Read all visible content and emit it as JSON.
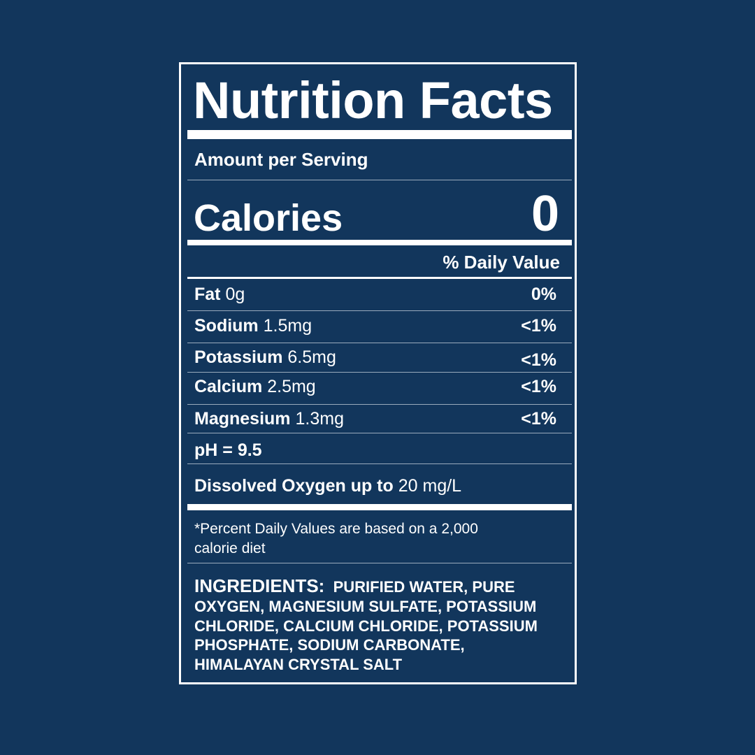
{
  "title": "Nutrition Facts",
  "amount_per_serving": "Amount per Serving",
  "calories": {
    "label": "Calories",
    "value": "0"
  },
  "daily_value_header": "% Daily Value",
  "nutrients": [
    {
      "name": "Fat",
      "amount": "0g",
      "dv": "0%"
    },
    {
      "name": "Sodium",
      "amount": "1.5mg",
      "dv": "<1%"
    },
    {
      "name": "Potassium",
      "amount": "6.5mg",
      "dv": "<1%"
    },
    {
      "name": "Calcium",
      "amount": "2.5mg",
      "dv": "<1%"
    },
    {
      "name": "Magnesium",
      "amount": "1.3mg",
      "dv": "<1%"
    }
  ],
  "ph": "pH = 9.5",
  "dissolved_oxygen": {
    "label": "Dissolved Oxygen up to",
    "value": "20 mg/L"
  },
  "footnote": {
    "line1": "*Percent Daily Values are based on a 2,000",
    "line2": "calorie diet"
  },
  "ingredients": {
    "label": "INGREDIENTS:",
    "lines": [
      "PURIFIED WATER, PURE",
      "OXYGEN, MAGNESIUM SULFATE, POTASSIUM",
      "CHLORIDE, CALCIUM CHLORIDE, POTASSIUM",
      "PHOSPHATE, SODIUM CARBONATE,",
      "HIMALAYAN CRYSTAL SALT"
    ]
  },
  "colors": {
    "background": "#12365c",
    "foreground": "#ffffff"
  }
}
